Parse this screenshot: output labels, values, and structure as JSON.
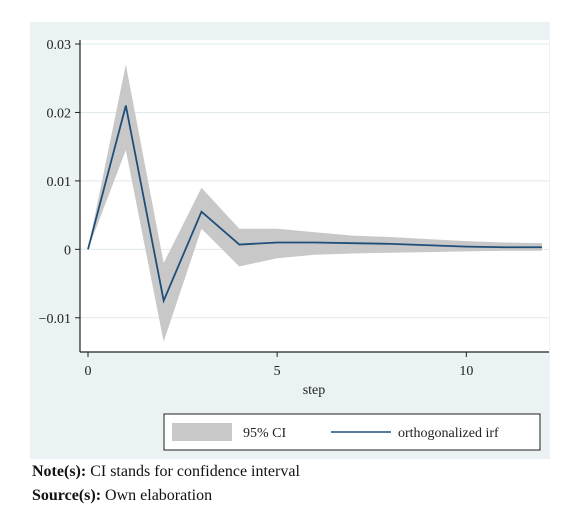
{
  "chart_data": {
    "type": "area",
    "xlabel": "step",
    "ylabel": "",
    "xlim": [
      0,
      12
    ],
    "ylim": [
      -0.015,
      0.03
    ],
    "xticks": [
      {
        "value": 0,
        "label": "0"
      },
      {
        "value": 5,
        "label": "5"
      },
      {
        "value": 10,
        "label": "10"
      }
    ],
    "yticks": [
      {
        "value": 0.03,
        "label": "0.03"
      },
      {
        "value": 0.02,
        "label": "0.02"
      },
      {
        "value": 0.01,
        "label": "0.01"
      },
      {
        "value": 0,
        "label": "0"
      },
      {
        "value": -0.01,
        "label": "−0.01"
      }
    ],
    "grid": "horizontal",
    "legend_position": "bottom",
    "x": [
      0,
      1,
      2,
      3,
      4,
      5,
      6,
      7,
      8,
      9,
      10,
      11,
      12
    ],
    "series": [
      {
        "name": "95% CI",
        "kind": "band",
        "lower": [
          0,
          0.0145,
          -0.0135,
          0.003,
          -0.0025,
          -0.0013,
          -0.0008,
          -0.0006,
          -0.0005,
          -0.0004,
          -0.0003,
          -0.0002,
          -0.0002
        ],
        "upper": [
          0,
          0.027,
          -0.002,
          0.009,
          0.003,
          0.003,
          0.0025,
          0.002,
          0.0018,
          0.0015,
          0.0012,
          0.001,
          0.0009
        ],
        "color": "#c8c8c8"
      },
      {
        "name": "orthogonalized irf",
        "kind": "line",
        "values": [
          0,
          0.021,
          -0.0075,
          0.0055,
          0.0007,
          0.001,
          0.001,
          0.0009,
          0.0008,
          0.0006,
          0.0004,
          0.0003,
          0.0003
        ],
        "color": "#1f4e79"
      }
    ]
  },
  "notes": {
    "note_label": "Note(s):",
    "note_text": " CI stands for confidence interval",
    "source_label": "Source(s):",
    "source_text": " Own elaboration"
  }
}
